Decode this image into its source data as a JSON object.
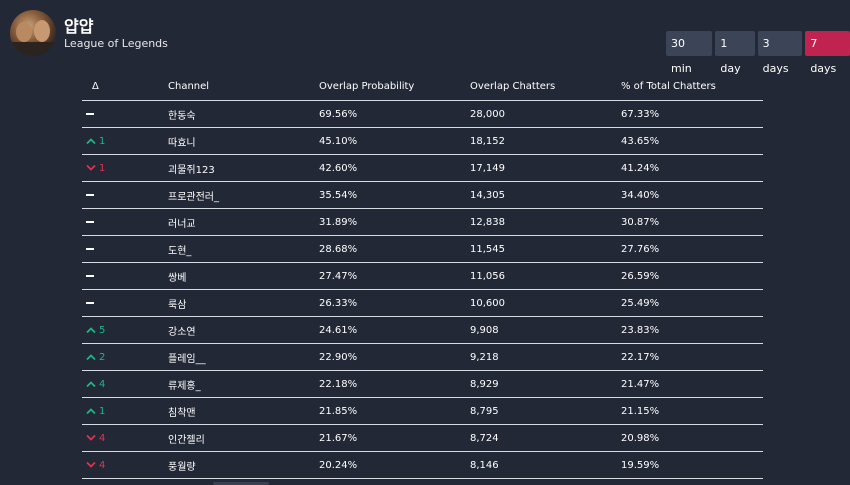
{
  "header": {
    "title": "얍얍",
    "subtitle": "League of Legends"
  },
  "ranges": [
    {
      "label": "30 min",
      "active": false
    },
    {
      "label": "1 day",
      "active": false
    },
    {
      "label": "3 days",
      "active": false
    },
    {
      "label": "7 days",
      "active": true
    }
  ],
  "table": {
    "columns": [
      "Δ",
      "Channel",
      "Overlap Probability",
      "Overlap Chatters",
      "% of Total Chatters"
    ],
    "rows": [
      {
        "delta_dir": "none",
        "delta": "",
        "channel": "한동숙",
        "prob": "69.56%",
        "chatters": "28,000",
        "pct": "67.33%"
      },
      {
        "delta_dir": "up",
        "delta": "1",
        "channel": "따효니",
        "prob": "45.10%",
        "chatters": "18,152",
        "pct": "43.65%"
      },
      {
        "delta_dir": "down",
        "delta": "1",
        "channel": "괴물쥐123",
        "prob": "42.60%",
        "chatters": "17,149",
        "pct": "41.24%"
      },
      {
        "delta_dir": "none",
        "delta": "",
        "channel": "프로관전러_",
        "prob": "35.54%",
        "chatters": "14,305",
        "pct": "34.40%"
      },
      {
        "delta_dir": "none",
        "delta": "",
        "channel": "러너교",
        "prob": "31.89%",
        "chatters": "12,838",
        "pct": "30.87%"
      },
      {
        "delta_dir": "none",
        "delta": "",
        "channel": "도현_",
        "prob": "28.68%",
        "chatters": "11,545",
        "pct": "27.76%"
      },
      {
        "delta_dir": "none",
        "delta": "",
        "channel": "쌍베",
        "prob": "27.47%",
        "chatters": "11,056",
        "pct": "26.59%"
      },
      {
        "delta_dir": "none",
        "delta": "",
        "channel": "룩삼",
        "prob": "26.33%",
        "chatters": "10,600",
        "pct": "25.49%"
      },
      {
        "delta_dir": "up",
        "delta": "5",
        "channel": "강소연",
        "prob": "24.61%",
        "chatters": "9,908",
        "pct": "23.83%"
      },
      {
        "delta_dir": "up",
        "delta": "2",
        "channel": "플레임__",
        "prob": "22.90%",
        "chatters": "9,218",
        "pct": "22.17%"
      },
      {
        "delta_dir": "up",
        "delta": "4",
        "channel": "류제홍_",
        "prob": "22.18%",
        "chatters": "8,929",
        "pct": "21.47%"
      },
      {
        "delta_dir": "up",
        "delta": "1",
        "channel": "침착맨",
        "prob": "21.85%",
        "chatters": "8,795",
        "pct": "21.15%"
      },
      {
        "delta_dir": "down",
        "delta": "4",
        "channel": "인간젤리",
        "prob": "21.67%",
        "chatters": "8,724",
        "pct": "20.98%"
      },
      {
        "delta_dir": "down",
        "delta": "4",
        "channel": "풍월량",
        "prob": "20.24%",
        "chatters": "8,146",
        "pct": "19.59%"
      }
    ]
  }
}
